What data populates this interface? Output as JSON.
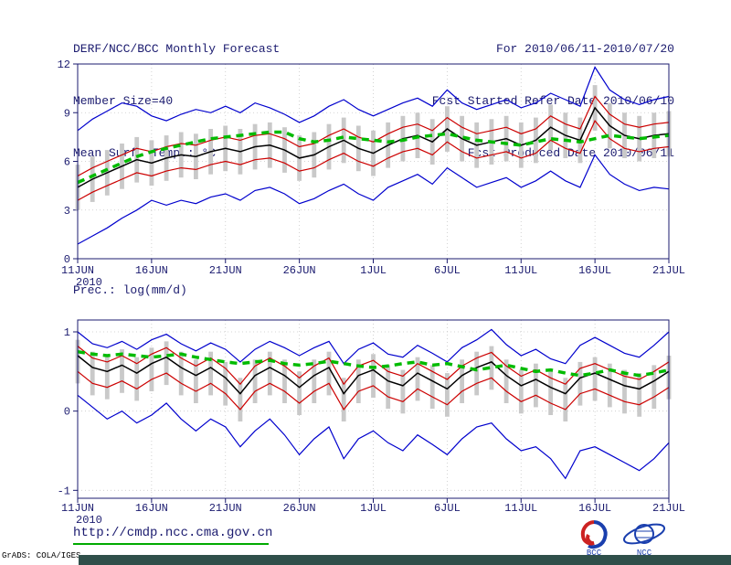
{
  "header": {
    "title": "DERF/NCC/BCC Monthly Forecast",
    "member_size": "Member Size=40",
    "for_range": "For 2010/06/11-2010/07/20",
    "refer_date": "Fcst Started Refer Date 2010/06/10",
    "produced_date": "Fcst Produced Date 2010/06/11"
  },
  "charts": {
    "temp_label": "Mean Surf. Temp.: °C",
    "prec_label": "Prec.: log(mm/d)"
  },
  "footer": {
    "url": "http://cmdp.ncc.cma.gov.cn",
    "grads_credit": "GrADS: COLA/IGES",
    "logos": [
      {
        "name": "bcc-logo",
        "label": "BCC"
      },
      {
        "name": "ncc-logo",
        "label": "NCC"
      }
    ]
  },
  "chart_data": [
    {
      "name": "temperature-forecast",
      "type": "line",
      "title": "Mean Surf. Temp.: °C",
      "xlabel": "",
      "ylabel": "",
      "ylim": [
        0,
        12
      ],
      "yticks": [
        0,
        3,
        6,
        9,
        12
      ],
      "grid": "dotted",
      "legend_position": "none",
      "x_tick_labels": [
        "11JUN",
        "16JUN",
        "21JUN",
        "26JUN",
        "1JUL",
        "6JUL",
        "11JUL",
        "16JUL",
        "21JUL"
      ],
      "x_tick_positions": [
        0,
        5,
        10,
        15,
        20,
        25,
        30,
        35,
        40
      ],
      "x_year_label": "2010",
      "series": [
        {
          "name": "ensemble-max",
          "color": "#0000cd",
          "width": 1.2,
          "values": [
            7.9,
            8.6,
            9.1,
            9.6,
            9.4,
            8.8,
            8.5,
            8.9,
            9.2,
            9.0,
            9.4,
            9.0,
            9.6,
            9.3,
            8.9,
            8.4,
            8.8,
            9.4,
            9.8,
            9.2,
            8.8,
            9.2,
            9.6,
            9.9,
            9.4,
            10.4,
            9.6,
            9.2,
            9.5,
            9.8,
            9.3,
            9.6,
            10.2,
            9.8,
            9.4,
            11.8,
            10.4,
            9.8,
            9.5,
            9.8,
            10.0
          ]
        },
        {
          "name": "ensemble-min",
          "color": "#0000cd",
          "width": 1.2,
          "values": [
            0.9,
            1.4,
            1.9,
            2.5,
            3.0,
            3.6,
            3.3,
            3.6,
            3.4,
            3.8,
            4.0,
            3.6,
            4.2,
            4.4,
            4.0,
            3.4,
            3.7,
            4.2,
            4.6,
            4.0,
            3.6,
            4.4,
            4.8,
            5.2,
            4.6,
            5.6,
            5.0,
            4.4,
            4.7,
            5.0,
            4.4,
            4.8,
            5.4,
            4.8,
            4.4,
            6.4,
            5.2,
            4.6,
            4.2,
            4.4,
            4.3
          ]
        },
        {
          "name": "percentile-upper",
          "color": "#cc0000",
          "width": 1.2,
          "values": [
            5.1,
            5.6,
            6.0,
            6.4,
            6.8,
            6.6,
            6.9,
            7.1,
            7.0,
            7.3,
            7.5,
            7.3,
            7.6,
            7.7,
            7.4,
            6.9,
            7.1,
            7.6,
            8.0,
            7.5,
            7.2,
            7.7,
            8.1,
            8.3,
            7.9,
            8.7,
            8.1,
            7.7,
            7.9,
            8.1,
            7.7,
            8.0,
            8.8,
            8.3,
            8.0,
            10.0,
            8.9,
            8.3,
            8.1,
            8.3,
            8.4
          ]
        },
        {
          "name": "percentile-lower",
          "color": "#cc0000",
          "width": 1.2,
          "values": [
            3.6,
            4.1,
            4.5,
            4.9,
            5.3,
            5.1,
            5.4,
            5.6,
            5.5,
            5.8,
            6.0,
            5.8,
            6.1,
            6.2,
            5.9,
            5.4,
            5.6,
            6.1,
            6.5,
            6.0,
            5.7,
            6.2,
            6.6,
            6.8,
            6.4,
            7.2,
            6.6,
            6.2,
            6.4,
            6.6,
            6.2,
            6.5,
            7.3,
            6.8,
            6.5,
            8.5,
            7.4,
            6.8,
            6.6,
            6.8,
            6.9
          ]
        },
        {
          "name": "ensemble-mean",
          "color": "#000000",
          "width": 1.5,
          "values": [
            4.4,
            4.9,
            5.3,
            5.7,
            6.1,
            5.9,
            6.2,
            6.4,
            6.3,
            6.6,
            6.8,
            6.6,
            6.9,
            7.0,
            6.7,
            6.2,
            6.4,
            6.9,
            7.3,
            6.8,
            6.5,
            7.0,
            7.4,
            7.6,
            7.2,
            8.0,
            7.4,
            7.0,
            7.2,
            7.4,
            7.0,
            7.3,
            8.1,
            7.6,
            7.3,
            9.3,
            8.2,
            7.6,
            7.4,
            7.6,
            7.7
          ]
        },
        {
          "name": "climatology",
          "color": "#00bb00",
          "width": 3.5,
          "dash": "8,6",
          "values": [
            4.7,
            5.1,
            5.5,
            5.9,
            6.3,
            6.6,
            6.8,
            7.0,
            7.2,
            7.4,
            7.5,
            7.6,
            7.7,
            7.8,
            7.8,
            7.4,
            7.2,
            7.3,
            7.5,
            7.4,
            7.3,
            7.2,
            7.3,
            7.5,
            7.6,
            7.7,
            7.5,
            7.3,
            7.2,
            7.1,
            7.0,
            7.2,
            7.4,
            7.3,
            7.2,
            7.4,
            7.6,
            7.5,
            7.4,
            7.5,
            7.6
          ]
        }
      ],
      "spread_bars": {
        "color": "#c9c9c9",
        "low": [
          3.0,
          3.5,
          3.9,
          4.3,
          4.7,
          4.5,
          4.8,
          5.0,
          4.9,
          5.2,
          5.4,
          5.2,
          5.5,
          5.6,
          5.3,
          4.8,
          5.0,
          5.5,
          5.9,
          5.4,
          5.1,
          5.6,
          6.0,
          6.2,
          5.8,
          6.6,
          6.0,
          5.6,
          5.8,
          6.0,
          5.6,
          5.9,
          6.7,
          6.2,
          5.9,
          7.9,
          6.8,
          6.2,
          6.0,
          6.2,
          6.3
        ],
        "high": [
          5.8,
          6.3,
          6.7,
          7.1,
          7.5,
          7.3,
          7.6,
          7.8,
          7.7,
          8.0,
          8.2,
          8.0,
          8.3,
          8.4,
          8.1,
          7.6,
          7.8,
          8.3,
          8.7,
          8.2,
          7.9,
          8.4,
          8.8,
          9.0,
          8.6,
          9.4,
          8.8,
          8.4,
          8.6,
          8.8,
          8.4,
          8.7,
          9.5,
          9.0,
          8.7,
          10.7,
          9.6,
          9.0,
          8.8,
          9.0,
          9.1
        ]
      }
    },
    {
      "name": "precipitation-forecast",
      "type": "line",
      "title": "Prec.: log(mm/d)",
      "xlabel": "",
      "ylabel": "",
      "ylim": [
        -1.1,
        1.15
      ],
      "yticks": [
        -1,
        0,
        1
      ],
      "grid": "dotted",
      "legend_position": "none",
      "x_tick_labels": [
        "11JUN",
        "16JUN",
        "21JUN",
        "26JUN",
        "1JUL",
        "6JUL",
        "11JUL",
        "16JUL",
        "21JUL"
      ],
      "x_tick_positions": [
        0,
        5,
        10,
        15,
        20,
        25,
        30,
        35,
        40
      ],
      "x_year_label": "2010",
      "series": [
        {
          "name": "ensemble-max",
          "color": "#0000cd",
          "width": 1.2,
          "values": [
            1.0,
            0.85,
            0.8,
            0.88,
            0.78,
            0.9,
            0.97,
            0.85,
            0.76,
            0.86,
            0.78,
            0.62,
            0.78,
            0.88,
            0.8,
            0.7,
            0.8,
            0.88,
            0.6,
            0.78,
            0.86,
            0.72,
            0.68,
            0.83,
            0.73,
            0.62,
            0.8,
            0.9,
            1.03,
            0.84,
            0.7,
            0.78,
            0.66,
            0.6,
            0.83,
            0.93,
            0.83,
            0.73,
            0.68,
            0.83,
            1.0
          ]
        },
        {
          "name": "ensemble-min",
          "color": "#0000cd",
          "width": 1.2,
          "values": [
            0.2,
            0.05,
            -0.1,
            0.0,
            -0.15,
            -0.05,
            0.1,
            -0.1,
            -0.25,
            -0.1,
            -0.2,
            -0.45,
            -0.25,
            -0.1,
            -0.3,
            -0.55,
            -0.35,
            -0.2,
            -0.6,
            -0.35,
            -0.25,
            -0.4,
            -0.5,
            -0.3,
            -0.42,
            -0.55,
            -0.35,
            -0.2,
            -0.15,
            -0.35,
            -0.5,
            -0.45,
            -0.6,
            -0.85,
            -0.5,
            -0.45,
            -0.55,
            -0.65,
            -0.75,
            -0.6,
            -0.4
          ]
        },
        {
          "name": "percentile-upper",
          "color": "#cc0000",
          "width": 1.2,
          "values": [
            0.82,
            0.67,
            0.62,
            0.7,
            0.6,
            0.72,
            0.8,
            0.67,
            0.57,
            0.67,
            0.54,
            0.34,
            0.57,
            0.67,
            0.57,
            0.42,
            0.57,
            0.67,
            0.34,
            0.57,
            0.64,
            0.5,
            0.44,
            0.6,
            0.5,
            0.4,
            0.57,
            0.67,
            0.74,
            0.57,
            0.44,
            0.52,
            0.42,
            0.34,
            0.54,
            0.6,
            0.52,
            0.44,
            0.4,
            0.5,
            0.62
          ]
        },
        {
          "name": "percentile-lower",
          "color": "#cc0000",
          "width": 1.2,
          "values": [
            0.5,
            0.35,
            0.3,
            0.38,
            0.28,
            0.4,
            0.48,
            0.35,
            0.25,
            0.35,
            0.22,
            0.02,
            0.25,
            0.35,
            0.25,
            0.1,
            0.25,
            0.35,
            0.02,
            0.25,
            0.32,
            0.18,
            0.12,
            0.28,
            0.18,
            0.08,
            0.25,
            0.35,
            0.42,
            0.25,
            0.12,
            0.2,
            0.1,
            0.02,
            0.22,
            0.28,
            0.2,
            0.12,
            0.08,
            0.18,
            0.3
          ]
        },
        {
          "name": "ensemble-mean",
          "color": "#000000",
          "width": 1.5,
          "values": [
            0.7,
            0.55,
            0.5,
            0.58,
            0.48,
            0.6,
            0.68,
            0.55,
            0.45,
            0.55,
            0.42,
            0.22,
            0.45,
            0.55,
            0.45,
            0.3,
            0.45,
            0.55,
            0.22,
            0.45,
            0.52,
            0.38,
            0.32,
            0.48,
            0.38,
            0.28,
            0.45,
            0.55,
            0.62,
            0.45,
            0.32,
            0.4,
            0.3,
            0.22,
            0.42,
            0.48,
            0.4,
            0.32,
            0.28,
            0.38,
            0.5
          ]
        },
        {
          "name": "climatology",
          "color": "#00bb00",
          "width": 3.5,
          "dash": "8,6",
          "values": [
            0.75,
            0.72,
            0.7,
            0.72,
            0.7,
            0.68,
            0.7,
            0.72,
            0.68,
            0.65,
            0.62,
            0.6,
            0.62,
            0.64,
            0.6,
            0.58,
            0.6,
            0.63,
            0.6,
            0.57,
            0.55,
            0.57,
            0.6,
            0.62,
            0.58,
            0.6,
            0.56,
            0.52,
            0.55,
            0.58,
            0.54,
            0.5,
            0.52,
            0.48,
            0.45,
            0.48,
            0.52,
            0.48,
            0.45,
            0.48,
            0.52
          ]
        }
      ],
      "spread_bars": {
        "color": "#c9c9c9",
        "low": [
          0.35,
          0.2,
          0.15,
          0.23,
          0.13,
          0.25,
          0.33,
          0.2,
          0.1,
          0.2,
          0.07,
          -0.13,
          0.1,
          0.2,
          0.1,
          -0.05,
          0.1,
          0.2,
          -0.13,
          0.1,
          0.17,
          0.03,
          -0.03,
          0.13,
          0.03,
          -0.07,
          0.1,
          0.2,
          0.27,
          0.1,
          -0.03,
          0.05,
          -0.05,
          -0.13,
          0.07,
          0.13,
          0.05,
          -0.03,
          -0.07,
          0.03,
          0.15
        ],
        "high": [
          0.9,
          0.75,
          0.7,
          0.78,
          0.68,
          0.8,
          0.88,
          0.75,
          0.65,
          0.75,
          0.62,
          0.42,
          0.65,
          0.75,
          0.65,
          0.5,
          0.65,
          0.75,
          0.42,
          0.65,
          0.72,
          0.58,
          0.52,
          0.68,
          0.58,
          0.48,
          0.65,
          0.75,
          0.82,
          0.65,
          0.52,
          0.6,
          0.5,
          0.42,
          0.62,
          0.68,
          0.6,
          0.52,
          0.48,
          0.58,
          0.7
        ]
      }
    }
  ]
}
